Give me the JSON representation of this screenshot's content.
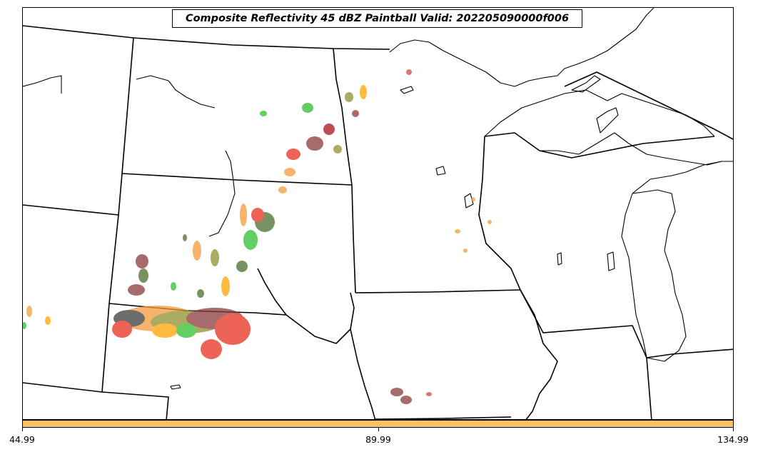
{
  "title": "Composite Reflectivity 45 dBZ Paintball Valid: 202205090000f006",
  "colorbar": {
    "color": "#ffc260",
    "tick_labels": [
      "44.99",
      "89.99",
      "134.99"
    ]
  },
  "colors": {
    "boundary": "#000000",
    "members": [
      "#e8301e",
      "#f39a3c",
      "#a3131b",
      "#8b3a3a",
      "#2fbf2f",
      "#4b6d2b",
      "#8f8f2f",
      "#3d3d3d",
      "#ffa500",
      "#c0504d"
    ]
  },
  "icons": {
    "map": "regional-map-outline"
  }
}
